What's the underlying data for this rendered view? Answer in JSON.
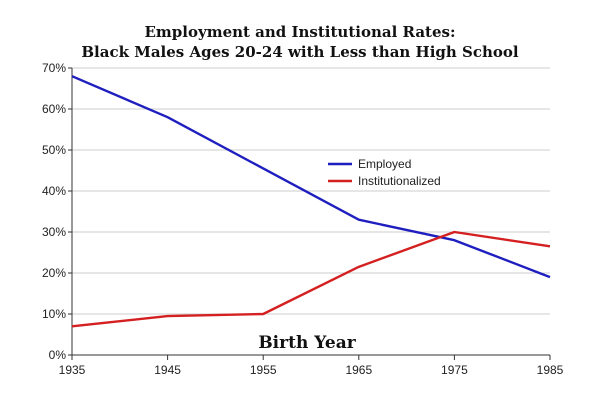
{
  "chart_data": {
    "type": "line",
    "title_line1": "Employment and Institutional Rates:",
    "title_line2": "Black Males Ages 20-24 with Less than High School",
    "xlabel": "Birth Year",
    "ylabel": "",
    "x": [
      1935,
      1945,
      1955,
      1965,
      1975,
      1985
    ],
    "xlim": [
      1935,
      1985
    ],
    "ylim": [
      0,
      70
    ],
    "x_ticks": [
      "1935",
      "1945",
      "1955",
      "1965",
      "1975",
      "1985"
    ],
    "y_ticks": [
      "0%",
      "10%",
      "20%",
      "30%",
      "40%",
      "50%",
      "60%",
      "70%"
    ],
    "grid": true,
    "legend_position": "center-right",
    "series": [
      {
        "name": "Employed",
        "color": "#1f1fbf",
        "values": [
          68,
          58,
          45.5,
          33,
          28,
          19
        ]
      },
      {
        "name": "Institutionalized",
        "color": "#d42020",
        "values": [
          7,
          9.5,
          10,
          21.5,
          30,
          26.5
        ]
      }
    ]
  }
}
